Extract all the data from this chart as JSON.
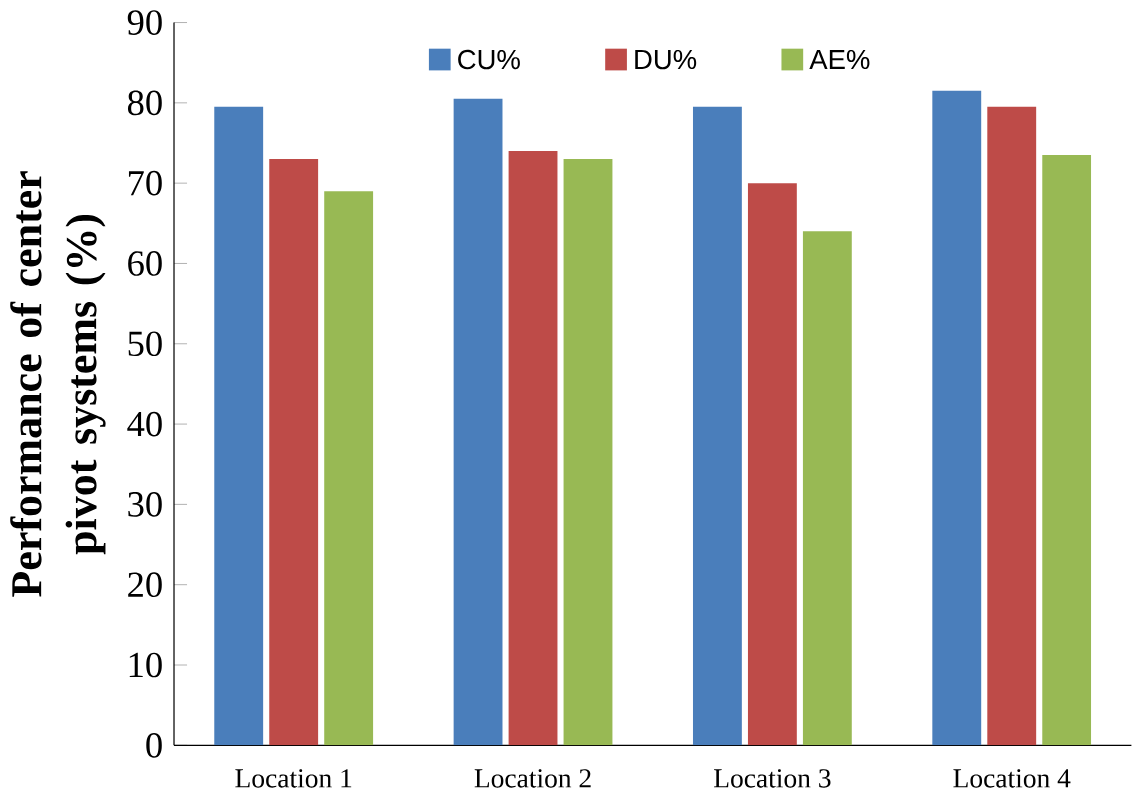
{
  "chart_data": {
    "type": "bar",
    "ylabel": "Performance of center pivot systems (%)",
    "categories": [
      "Location 1",
      "Location 2",
      "Location 3",
      "Location 4"
    ],
    "series": [
      {
        "name": "CU%",
        "color": "#4a7ebb",
        "values": [
          79.5,
          80.5,
          79.5,
          81.5
        ]
      },
      {
        "name": "DU%",
        "color": "#be4b48",
        "values": [
          73,
          74,
          70,
          79.5
        ]
      },
      {
        "name": "AE%",
        "color": "#98b954",
        "values": [
          69,
          73,
          64,
          73.5
        ]
      }
    ],
    "ylim": [
      0,
      90
    ],
    "yticks": [
      0,
      10,
      20,
      30,
      40,
      50,
      60,
      70,
      80,
      90
    ],
    "grid": false,
    "legend": "top"
  }
}
